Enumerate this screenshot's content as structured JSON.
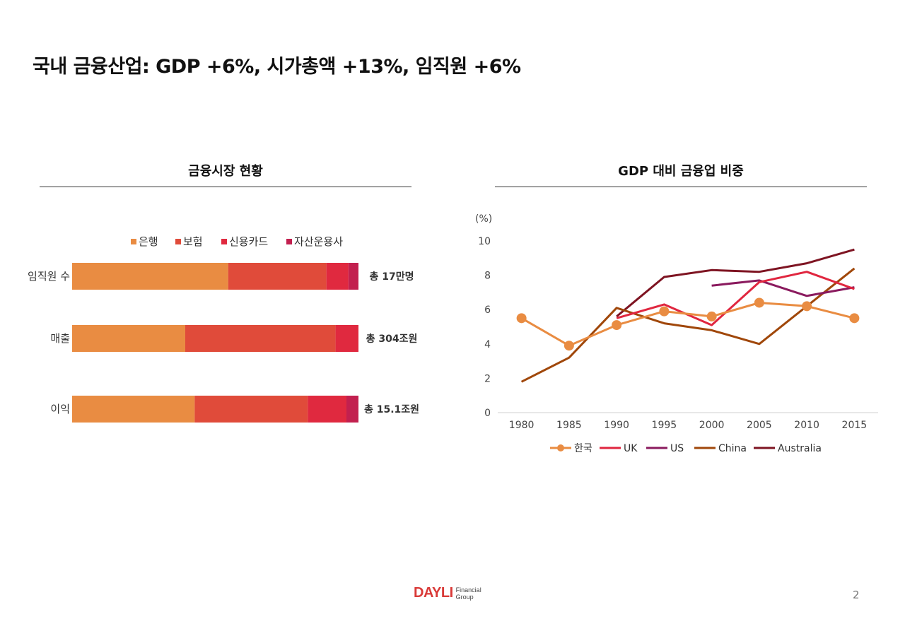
{
  "slide": {
    "title": "국내 금융산업: GDP +6%, 시가총액 +13%, 임직원 +6%",
    "page_number": "2"
  },
  "logo": {
    "main": "DAYLI",
    "sub_line1": "Financial",
    "sub_line2": "Group"
  },
  "chart_data": [
    {
      "type": "bar",
      "orientation": "horizontal",
      "stacked": "100%",
      "title": "금융시장 현황",
      "categories": [
        "임직원 수",
        "매출",
        "이익"
      ],
      "totals": [
        "총 17만명",
        "총 304조원",
        "총 15.1조원"
      ],
      "series": [
        {
          "name": "은행",
          "color": "#E98C42",
          "values": [
            54.5,
            39.5,
            42.8
          ]
        },
        {
          "name": "보험",
          "color": "#E04B3A",
          "values": [
            34.3,
            52.5,
            39.5
          ]
        },
        {
          "name": "신용카드",
          "color": "#E0293F",
          "values": [
            7.7,
            8.0,
            13.5
          ]
        },
        {
          "name": "자산운용사",
          "color": "#C2204F",
          "values": [
            3.5,
            0,
            4.2
          ]
        }
      ],
      "legend": "top"
    },
    {
      "type": "line",
      "title": "GDP 대비 금융업 비중",
      "unit_label": "(%)",
      "x": [
        1980,
        1985,
        1990,
        1995,
        2000,
        2005,
        2010,
        2015
      ],
      "ylim": [
        0,
        10
      ],
      "yticks": [
        0,
        2,
        4,
        6,
        8,
        10
      ],
      "series": [
        {
          "name": "한국",
          "color": "#E98C42",
          "markers": true,
          "values": [
            5.5,
            3.9,
            5.1,
            5.9,
            5.6,
            6.4,
            6.2,
            5.5
          ]
        },
        {
          "name": "UK",
          "color": "#E0263F",
          "markers": false,
          "values": [
            null,
            null,
            5.5,
            6.3,
            5.1,
            7.6,
            8.2,
            7.2
          ]
        },
        {
          "name": "US",
          "color": "#8A1A5E",
          "markers": false,
          "values": [
            null,
            null,
            null,
            null,
            7.4,
            7.7,
            6.8,
            7.3
          ]
        },
        {
          "name": "China",
          "color": "#A0470A",
          "markers": false,
          "values": [
            1.8,
            3.2,
            6.1,
            5.2,
            4.8,
            4.0,
            6.2,
            8.4
          ]
        },
        {
          "name": "Australia",
          "color": "#7E1422",
          "markers": false,
          "values": [
            null,
            null,
            5.6,
            7.9,
            8.3,
            8.2,
            8.7,
            9.5
          ]
        }
      ],
      "legend": "bottom"
    }
  ]
}
